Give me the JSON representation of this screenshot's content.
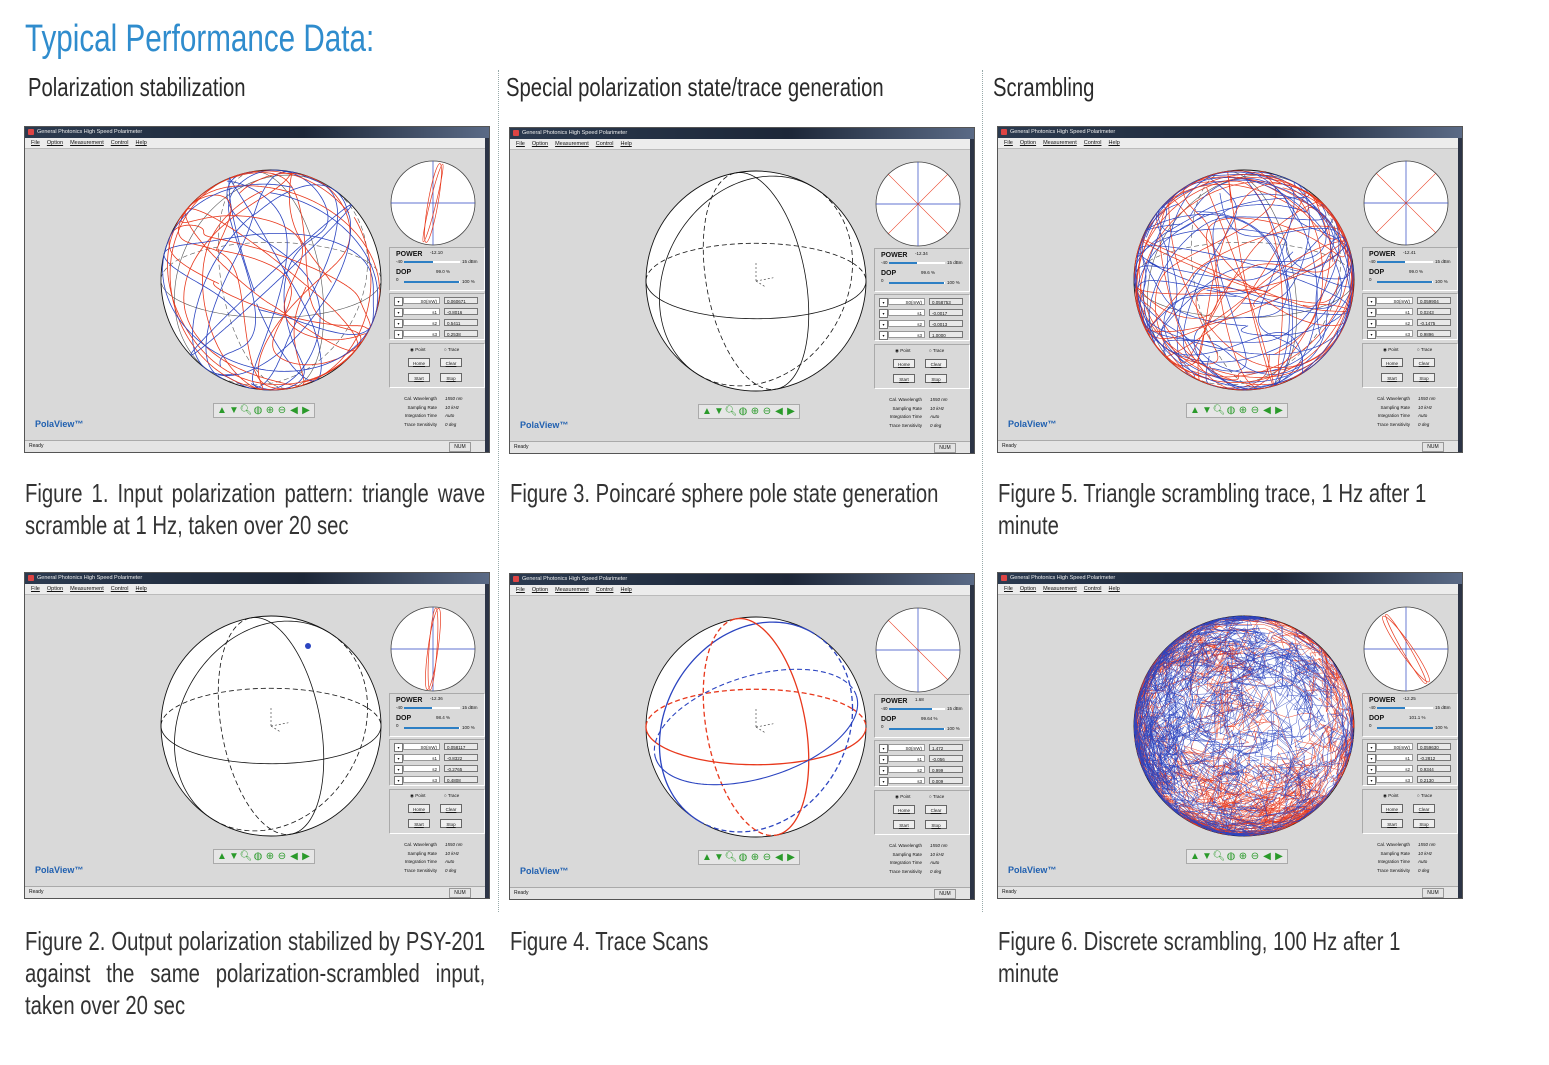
{
  "document": {
    "title": "Typical Performance Data:",
    "columns": [
      {
        "heading": "Polarization stabilization"
      },
      {
        "heading": "Special polarization state/trace generation"
      },
      {
        "heading": "Scrambling"
      }
    ]
  },
  "app": {
    "window_title": "General Photonics High Speed Polarimeter",
    "menu": [
      "File",
      "Option",
      "Measurement",
      "Control",
      "Help"
    ],
    "power_label": "POWER",
    "dop_label": "DOP",
    "power_min": "-40",
    "power_max": "15 dBm",
    "dop_min": "0",
    "dop_max": "100 %",
    "field_labels": [
      "S0(mW)",
      "s1",
      "s2",
      "s3"
    ],
    "dropdown_icon": "▾",
    "mode_point": "Point",
    "mode_trace": "Trace",
    "buttons": {
      "home": "Home",
      "clear": "Clear",
      "start": "Start",
      "stop": "Stop"
    },
    "settings": [
      {
        "label": "Cal. Wavelength",
        "value": "1550  nm"
      },
      {
        "label": "Sampling Rate",
        "value": "10  kHz"
      },
      {
        "label": "Integration Time",
        "value": "Auto"
      },
      {
        "label": "Trace Sensitivity",
        "value": "0  deg"
      }
    ],
    "toolbar_icons": [
      "rotate-up-icon",
      "rotate-down-icon",
      "zoom-icon",
      "globe-icon",
      "zoom-in-icon",
      "zoom-out-icon",
      "rotate-left-icon",
      "rotate-right-icon"
    ],
    "brand": "PolaView™",
    "status_ready": "Ready",
    "status_num": "NUM",
    "colors": {
      "trace_red": "#e8381c",
      "trace_blue": "#2b44c0",
      "title_blue": "#2f8ccd",
      "bar_blue": "#2d7fc4"
    }
  },
  "figures": [
    {
      "id": "fig1",
      "column": 0,
      "row": 0,
      "caption": "Figure 1. Input polarization pattern: triangle wave scramble at 1 Hz, taken over 20 sec",
      "trace": "scramble",
      "power": "-12.10",
      "power_fraction": 0.51,
      "dop": "99.0 %",
      "dop_fraction": 0.99,
      "values": [
        "0.060671",
        "-0.8016",
        "0.5411",
        "0.2538"
      ],
      "mode": "Point"
    },
    {
      "id": "fig2",
      "column": 0,
      "row": 1,
      "caption": "Figure 2. Output polarization stabilized by PSY-201 against the same polarization-scrambled input, taken over 20 sec",
      "trace": "stabilized",
      "power": "-12.36",
      "power_fraction": 0.5,
      "dop": "98.4 %",
      "dop_fraction": 0.98,
      "values": [
        "0.058117",
        "-0.8322",
        "-0.2765",
        "0.4808"
      ],
      "mode": "Point"
    },
    {
      "id": "fig3",
      "column": 1,
      "row": 0,
      "caption": "Figure 3. Poincaré sphere pole state generation",
      "trace": "pole",
      "power": "-12.34",
      "power_fraction": 0.5,
      "dop": "99.6 %",
      "dop_fraction": 0.99,
      "values": [
        "0.058753",
        "-0.0017",
        "-0.0013",
        "1.0000"
      ],
      "mode": "Point"
    },
    {
      "id": "fig4",
      "column": 1,
      "row": 1,
      "caption": "Figure 4. Trace Scans",
      "trace": "scans",
      "power": "1.68",
      "power_fraction": 0.76,
      "dop": "99.64 %",
      "dop_fraction": 0.99,
      "values": [
        "1.472",
        "-0.056",
        "0.999",
        "0.009"
      ],
      "mode": "Point"
    },
    {
      "id": "fig5",
      "column": 2,
      "row": 0,
      "caption": "Figure 5. Triangle scrambling trace, 1 Hz after 1 minute",
      "trace": "triangle",
      "power": "-12.41",
      "power_fraction": 0.5,
      "dop": "99.0 %",
      "dop_fraction": 0.99,
      "values": [
        "0.059904",
        "0.0243",
        "-0.1475",
        "0.9896"
      ],
      "mode": "Point"
    },
    {
      "id": "fig6",
      "column": 2,
      "row": 1,
      "caption": "Figure 6. Discrete scrambling, 100 Hz after 1 minute",
      "trace": "discrete",
      "power": "-12.25",
      "power_fraction": 0.5,
      "dop": "101.1 %",
      "dop_fraction": 1.0,
      "values": [
        "0.059630",
        "-0.2812",
        "0.9344",
        "0.2130"
      ],
      "mode": "Point"
    }
  ]
}
